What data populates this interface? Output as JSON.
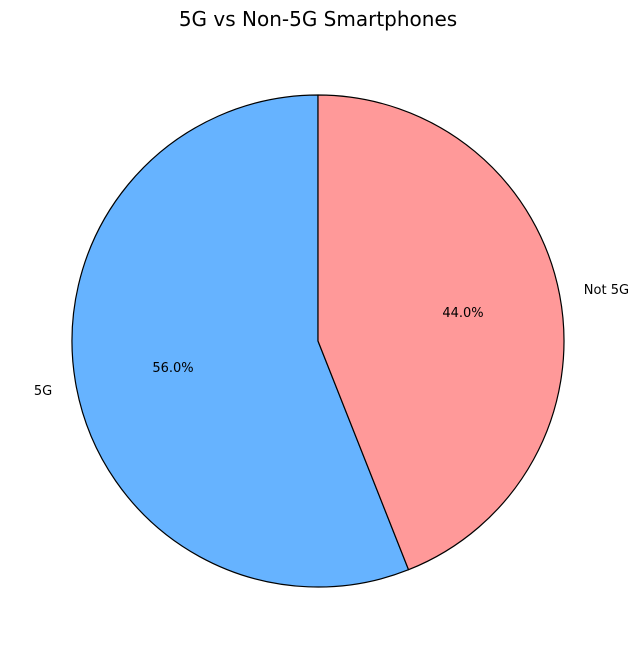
{
  "chart_data": {
    "type": "pie",
    "title": "5G vs Non-5G Smartphones",
    "categories": [
      "5G",
      "Not 5G"
    ],
    "values": [
      56.0,
      44.0
    ],
    "percent_labels": [
      "56.0%",
      "44.0%"
    ],
    "colors": [
      "#66b3ff",
      "#ff9999"
    ],
    "start_angle_deg": 90,
    "direction": "counterclockwise",
    "edge_color": "#000000",
    "legend": "none"
  }
}
